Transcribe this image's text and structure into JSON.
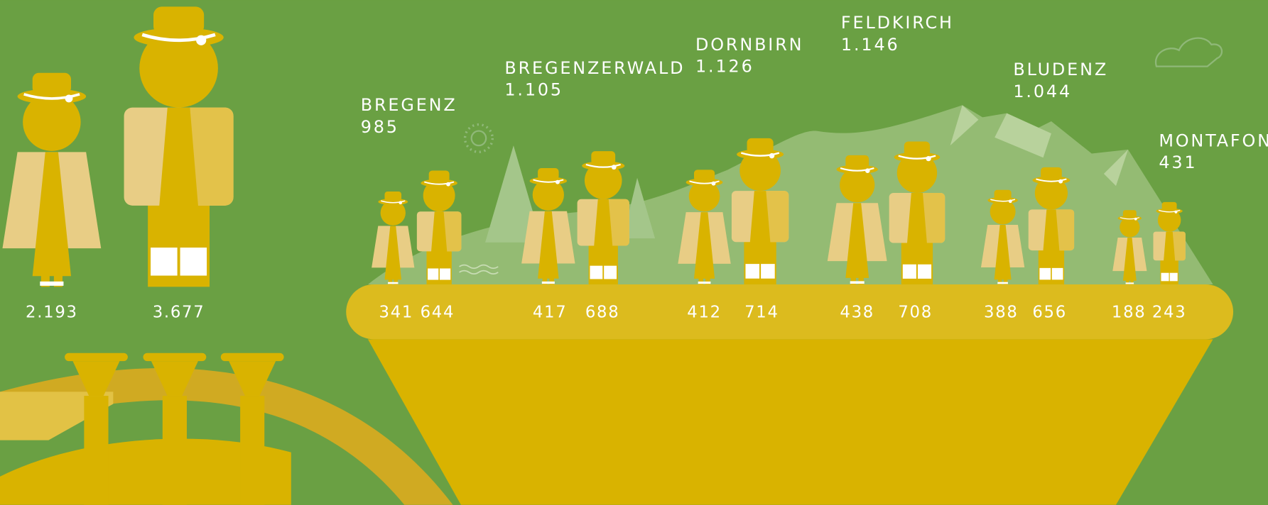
{
  "totals": {
    "women": "2.193",
    "men": "3.677"
  },
  "districts": [
    {
      "name": "BREGENZ",
      "total": "985",
      "women": "341",
      "men": "644"
    },
    {
      "name": "BREGENZERWALD",
      "total": "1.105",
      "women": "417",
      "men": "688"
    },
    {
      "name": "DORNBIRN",
      "total": "1.126",
      "women": "412",
      "men": "714"
    },
    {
      "name": "FELDKIRCH",
      "total": "1.146",
      "women": "438",
      "men": "708"
    },
    {
      "name": "BLUDENZ",
      "total": "1.044",
      "women": "388",
      "men": "656"
    },
    {
      "name": "MONTAFON",
      "total": "431",
      "women": "188",
      "men": "243"
    }
  ]
}
